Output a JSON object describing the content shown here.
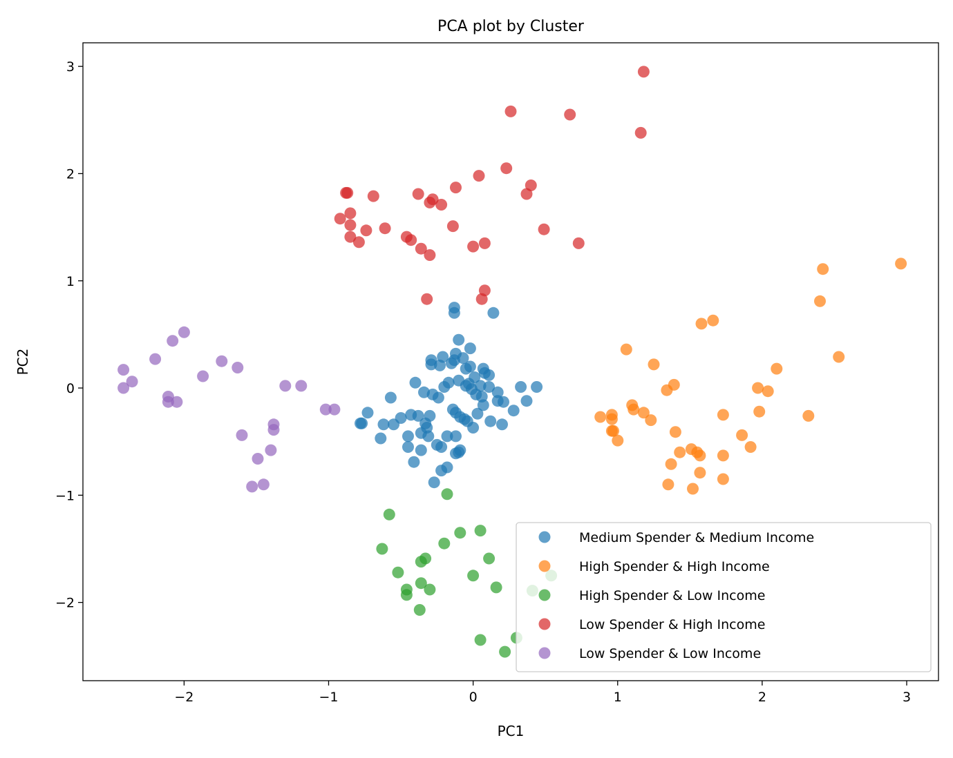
{
  "chart_data": {
    "type": "scatter",
    "title": "PCA plot by Cluster",
    "xlabel": "PC1",
    "ylabel": "PC2",
    "xlim": [
      -2.7,
      3.22
    ],
    "ylim": [
      -2.73,
      3.22
    ],
    "xticks": [
      -2,
      -1,
      0,
      1,
      2,
      3
    ],
    "yticks": [
      -2,
      -1,
      0,
      1,
      2,
      3
    ],
    "xtick_labels": [
      "−2",
      "−1",
      "0",
      "1",
      "2",
      "3"
    ],
    "ytick_labels": [
      "−2",
      "−1",
      "0",
      "1",
      "2",
      "3"
    ],
    "grid": false,
    "legend_position": "lower-right",
    "series": [
      {
        "name": "Medium Spender & Medium Income",
        "color": "#1f77b4",
        "points": [
          [
            -0.77,
            -0.33
          ],
          [
            -0.78,
            -0.33
          ],
          [
            -0.73,
            -0.23
          ],
          [
            -0.64,
            -0.47
          ],
          [
            -0.62,
            -0.34
          ],
          [
            -0.57,
            -0.09
          ],
          [
            -0.55,
            -0.34
          ],
          [
            -0.5,
            -0.28
          ],
          [
            -0.45,
            -0.45
          ],
          [
            -0.45,
            -0.55
          ],
          [
            -0.43,
            -0.25
          ],
          [
            -0.41,
            -0.69
          ],
          [
            -0.4,
            0.05
          ],
          [
            -0.38,
            -0.26
          ],
          [
            -0.36,
            -0.58
          ],
          [
            -0.36,
            -0.42
          ],
          [
            -0.34,
            -0.04
          ],
          [
            -0.33,
            -0.33
          ],
          [
            -0.32,
            -0.37
          ],
          [
            -0.31,
            -0.45
          ],
          [
            -0.3,
            -0.26
          ],
          [
            -0.29,
            0.22
          ],
          [
            -0.29,
            0.26
          ],
          [
            -0.28,
            -0.06
          ],
          [
            -0.27,
            -0.88
          ],
          [
            -0.25,
            -0.53
          ],
          [
            -0.24,
            -0.09
          ],
          [
            -0.23,
            0.21
          ],
          [
            -0.22,
            -0.55
          ],
          [
            -0.22,
            -0.77
          ],
          [
            -0.21,
            0.29
          ],
          [
            -0.2,
            0.01
          ],
          [
            -0.18,
            -0.74
          ],
          [
            -0.18,
            -0.45
          ],
          [
            -0.17,
            0.05
          ],
          [
            -0.15,
            0.23
          ],
          [
            -0.14,
            -0.2
          ],
          [
            -0.13,
            0.26
          ],
          [
            -0.13,
            0.75
          ],
          [
            -0.13,
            0.7
          ],
          [
            -0.12,
            -0.23
          ],
          [
            -0.12,
            0.32
          ],
          [
            -0.12,
            -0.45
          ],
          [
            -0.12,
            -0.61
          ],
          [
            -0.1,
            -0.6
          ],
          [
            -0.1,
            0.45
          ],
          [
            -0.1,
            0.07
          ],
          [
            -0.09,
            -0.27
          ],
          [
            -0.09,
            -0.58
          ],
          [
            -0.07,
            0.28
          ],
          [
            -0.06,
            -0.29
          ],
          [
            -0.05,
            0.18
          ],
          [
            -0.05,
            0.02
          ],
          [
            -0.04,
            -0.31
          ],
          [
            -0.03,
            0.04
          ],
          [
            -0.02,
            0.2
          ],
          [
            -0.02,
            0.37
          ],
          [
            -0.01,
            -0.01
          ],
          [
            0.0,
            -0.37
          ],
          [
            0.01,
            0.1
          ],
          [
            0.02,
            -0.06
          ],
          [
            0.03,
            -0.24
          ],
          [
            0.05,
            0.02
          ],
          [
            0.06,
            -0.08
          ],
          [
            0.07,
            0.18
          ],
          [
            0.07,
            -0.16
          ],
          [
            0.08,
            0.14
          ],
          [
            0.11,
            0.12
          ],
          [
            0.11,
            0.01
          ],
          [
            0.12,
            -0.31
          ],
          [
            0.14,
            0.7
          ],
          [
            0.17,
            -0.04
          ],
          [
            0.17,
            -0.12
          ],
          [
            0.2,
            -0.34
          ],
          [
            0.21,
            -0.13
          ],
          [
            0.28,
            -0.21
          ],
          [
            0.33,
            0.01
          ],
          [
            0.37,
            -0.12
          ],
          [
            0.44,
            0.01
          ]
        ]
      },
      {
        "name": "High Spender & High Income",
        "color": "#ff7f0e",
        "points": [
          [
            0.88,
            -0.27
          ],
          [
            0.96,
            -0.25
          ],
          [
            0.96,
            -0.29
          ],
          [
            0.96,
            -0.4
          ],
          [
            0.97,
            -0.4
          ],
          [
            1.0,
            -0.49
          ],
          [
            1.06,
            0.36
          ],
          [
            1.1,
            -0.16
          ],
          [
            1.11,
            -0.2
          ],
          [
            1.18,
            -0.23
          ],
          [
            1.23,
            -0.3
          ],
          [
            1.25,
            0.22
          ],
          [
            1.34,
            -0.02
          ],
          [
            1.35,
            -0.9
          ],
          [
            1.37,
            -0.71
          ],
          [
            1.39,
            0.03
          ],
          [
            1.4,
            -0.41
          ],
          [
            1.43,
            -0.6
          ],
          [
            1.51,
            -0.57
          ],
          [
            1.52,
            -0.94
          ],
          [
            1.55,
            -0.6
          ],
          [
            1.57,
            -0.63
          ],
          [
            1.57,
            -0.79
          ],
          [
            1.58,
            0.6
          ],
          [
            1.66,
            0.63
          ],
          [
            1.73,
            -0.25
          ],
          [
            1.73,
            -0.63
          ],
          [
            1.73,
            -0.85
          ],
          [
            1.86,
            -0.44
          ],
          [
            1.92,
            -0.55
          ],
          [
            1.97,
            0.0
          ],
          [
            1.98,
            -0.22
          ],
          [
            2.04,
            -0.03
          ],
          [
            2.1,
            0.18
          ],
          [
            2.32,
            -0.26
          ],
          [
            2.4,
            0.81
          ],
          [
            2.42,
            1.11
          ],
          [
            2.53,
            0.29
          ],
          [
            2.96,
            1.16
          ]
        ]
      },
      {
        "name": "High Spender & Low Income",
        "color": "#2ca02c",
        "points": [
          [
            -0.18,
            -0.99
          ],
          [
            -0.58,
            -1.18
          ],
          [
            -0.63,
            -1.5
          ],
          [
            -0.52,
            -1.72
          ],
          [
            -0.46,
            -1.88
          ],
          [
            -0.46,
            -1.93
          ],
          [
            -0.37,
            -2.07
          ],
          [
            -0.36,
            -1.82
          ],
          [
            -0.36,
            -1.62
          ],
          [
            -0.33,
            -1.59
          ],
          [
            -0.3,
            -1.88
          ],
          [
            -0.2,
            -1.45
          ],
          [
            -0.09,
            -1.35
          ],
          [
            0.0,
            -1.75
          ],
          [
            0.05,
            -1.33
          ],
          [
            0.05,
            -2.35
          ],
          [
            0.11,
            -1.59
          ],
          [
            0.16,
            -1.86
          ],
          [
            0.22,
            -2.46
          ],
          [
            0.3,
            -2.33
          ],
          [
            0.41,
            -1.89
          ],
          [
            0.54,
            -1.75
          ]
        ]
      },
      {
        "name": "Low Spender & High Income",
        "color": "#d62728",
        "points": [
          [
            -0.92,
            1.58
          ],
          [
            -0.88,
            1.82
          ],
          [
            -0.87,
            1.82
          ],
          [
            -0.85,
            1.63
          ],
          [
            -0.85,
            1.52
          ],
          [
            -0.85,
            1.41
          ],
          [
            -0.79,
            1.36
          ],
          [
            -0.74,
            1.47
          ],
          [
            -0.69,
            1.79
          ],
          [
            -0.61,
            1.49
          ],
          [
            -0.46,
            1.41
          ],
          [
            -0.43,
            1.38
          ],
          [
            -0.38,
            1.81
          ],
          [
            -0.36,
            1.3
          ],
          [
            -0.32,
            0.83
          ],
          [
            -0.3,
            1.73
          ],
          [
            -0.3,
            1.24
          ],
          [
            -0.28,
            1.76
          ],
          [
            -0.22,
            1.71
          ],
          [
            -0.14,
            1.51
          ],
          [
            -0.12,
            1.87
          ],
          [
            0.0,
            1.32
          ],
          [
            0.04,
            1.98
          ],
          [
            0.06,
            0.83
          ],
          [
            0.08,
            1.35
          ],
          [
            0.08,
            0.91
          ],
          [
            0.23,
            2.05
          ],
          [
            0.26,
            2.58
          ],
          [
            0.37,
            1.81
          ],
          [
            0.4,
            1.89
          ],
          [
            0.49,
            1.48
          ],
          [
            0.67,
            2.55
          ],
          [
            0.73,
            1.35
          ],
          [
            1.16,
            2.38
          ],
          [
            1.18,
            2.95
          ]
        ]
      },
      {
        "name": "Low Spender & Low Income",
        "color": "#9467bd",
        "points": [
          [
            -2.42,
            0.17
          ],
          [
            -2.42,
            0.0
          ],
          [
            -2.36,
            0.06
          ],
          [
            -2.2,
            0.27
          ],
          [
            -2.11,
            -0.08
          ],
          [
            -2.11,
            -0.13
          ],
          [
            -2.08,
            0.44
          ],
          [
            -2.05,
            -0.13
          ],
          [
            -2.0,
            0.52
          ],
          [
            -1.87,
            0.11
          ],
          [
            -1.74,
            0.25
          ],
          [
            -1.63,
            0.19
          ],
          [
            -1.6,
            -0.44
          ],
          [
            -1.53,
            -0.92
          ],
          [
            -1.49,
            -0.66
          ],
          [
            -1.45,
            -0.9
          ],
          [
            -1.4,
            -0.58
          ],
          [
            -1.38,
            -0.34
          ],
          [
            -1.38,
            -0.39
          ],
          [
            -1.3,
            0.02
          ],
          [
            -1.19,
            0.02
          ],
          [
            -1.02,
            -0.2
          ],
          [
            -0.96,
            -0.2
          ]
        ]
      }
    ]
  }
}
